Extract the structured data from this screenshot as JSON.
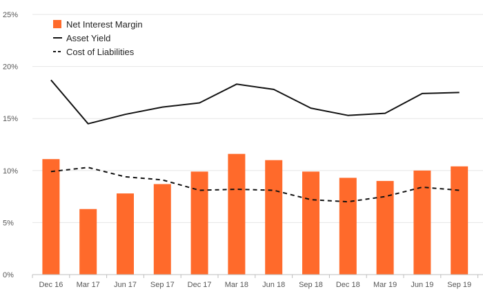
{
  "chart_data": {
    "type": "bar",
    "title": "",
    "xlabel": "",
    "ylabel": "",
    "categories": [
      "Dec 16",
      "Mar 17",
      "Jun 17",
      "Sep 17",
      "Dec 17",
      "Mar 18",
      "Jun 18",
      "Sep 18",
      "Dec 18",
      "Mar 19",
      "Jun 19",
      "Sep 19"
    ],
    "ylim": [
      0,
      25
    ],
    "y_ticks": [
      "0%",
      "5%",
      "10%",
      "15%",
      "20%",
      "25%"
    ],
    "y_tick_values": [
      0,
      5,
      10,
      15,
      20,
      25
    ],
    "grid": true,
    "legend_position": "top-left",
    "series": [
      {
        "name": "Net Interest Margin",
        "type": "bar",
        "color": "#ff6a2b",
        "values": [
          11.1,
          6.3,
          7.8,
          8.7,
          9.9,
          11.6,
          11.0,
          9.9,
          9.3,
          9.0,
          10.0,
          10.4
        ]
      },
      {
        "name": "Asset Yield",
        "type": "line",
        "style": "solid",
        "color": "#111111",
        "values": [
          18.7,
          14.5,
          15.4,
          16.1,
          16.5,
          18.3,
          17.8,
          16.0,
          15.3,
          15.5,
          17.4,
          17.5
        ]
      },
      {
        "name": "Cost of Liabilities",
        "type": "line",
        "style": "dashed",
        "color": "#111111",
        "values": [
          9.9,
          10.3,
          9.4,
          9.1,
          8.1,
          8.2,
          8.1,
          7.2,
          7.0,
          7.5,
          8.4,
          8.1
        ]
      }
    ]
  }
}
